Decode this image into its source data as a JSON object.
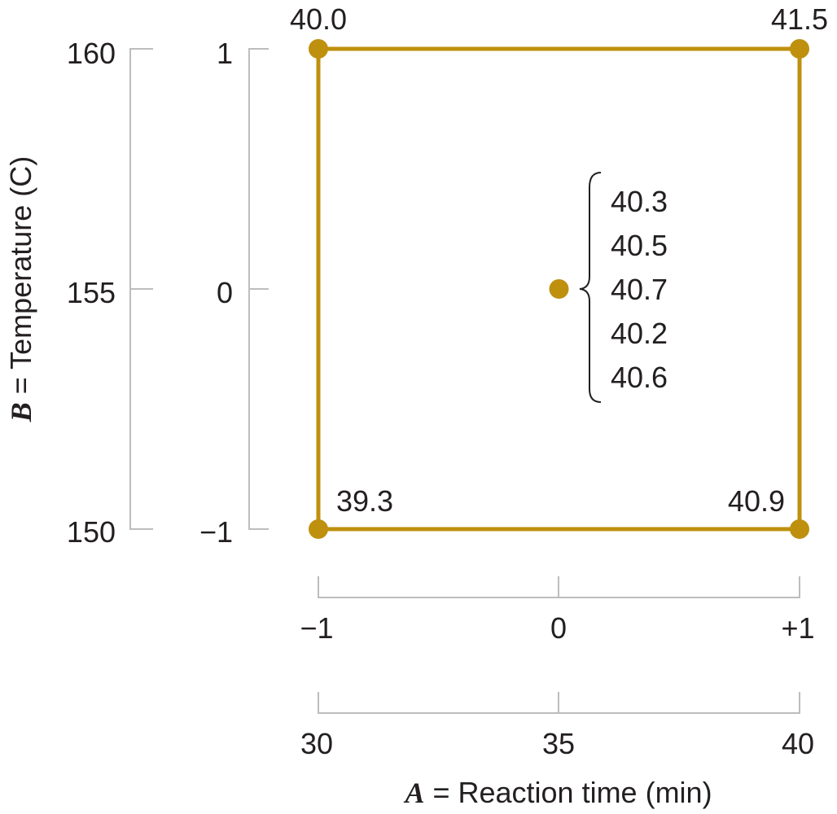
{
  "chart_data": {
    "type": "scatter",
    "x_axis": {
      "label_var": "A",
      "label_rest": " = Reaction time (min)",
      "coded_ticks": [
        "−1",
        "0",
        "+1"
      ],
      "natural_ticks": [
        "30",
        "35",
        "40"
      ]
    },
    "y_axis": {
      "label_var": "B",
      "label_rest": " = Temperature (C)",
      "coded_ticks": [
        "−1",
        "0",
        "1"
      ],
      "natural_ticks": [
        "150",
        "155",
        "160"
      ]
    },
    "points": [
      {
        "x": 30,
        "y": 160,
        "label": "40.0"
      },
      {
        "x": 40,
        "y": 160,
        "label": "41.5"
      },
      {
        "x": 30,
        "y": 150,
        "label": "39.3"
      },
      {
        "x": 40,
        "y": 150,
        "label": "40.9"
      },
      {
        "x": 35,
        "y": 155,
        "label": ""
      }
    ],
    "center_values": [
      "40.3",
      "40.5",
      "40.7",
      "40.2",
      "40.6"
    ],
    "xlim": [
      30,
      40
    ],
    "ylim": [
      150,
      160
    ],
    "color": "#bf900e"
  }
}
